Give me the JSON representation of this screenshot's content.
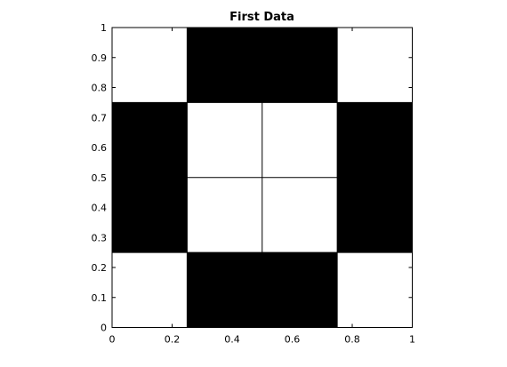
{
  "chart_data": {
    "type": "heatmap",
    "title": "First Data",
    "xlabel": "",
    "ylabel": "",
    "xlim": [
      0,
      1
    ],
    "ylim": [
      0,
      1
    ],
    "xticks": [
      0,
      0.2,
      0.4,
      0.6,
      0.8,
      1
    ],
    "xtick_labels": [
      "0",
      "0.2",
      "0.4",
      "0.6",
      "0.8",
      "1"
    ],
    "yticks": [
      0,
      0.1,
      0.2,
      0.3,
      0.4,
      0.5,
      0.6,
      0.7,
      0.8,
      0.9,
      1
    ],
    "ytick_labels": [
      "0",
      "0.1",
      "0.2",
      "0.3",
      "0.4",
      "0.5",
      "0.6",
      "0.7",
      "0.8",
      "0.9",
      "1"
    ],
    "grid": false,
    "legend": "none",
    "cell_colors": {
      "0": "#ffffff",
      "1": "#000000"
    },
    "grid_edges": [
      0,
      0.25,
      0.5,
      0.75,
      1
    ],
    "cells": [
      {
        "x0": 0,
        "x1": 0.25,
        "y0": 0,
        "y1": 0.25,
        "value": 0
      },
      {
        "x0": 0.25,
        "x1": 0.75,
        "y0": 0,
        "y1": 0.25,
        "value": 1
      },
      {
        "x0": 0.75,
        "x1": 1,
        "y0": 0,
        "y1": 0.25,
        "value": 0
      },
      {
        "x0": 0,
        "x1": 0.25,
        "y0": 0.25,
        "y1": 0.75,
        "value": 1
      },
      {
        "x0": 0.25,
        "x1": 0.5,
        "y0": 0.25,
        "y1": 0.5,
        "value": 0
      },
      {
        "x0": 0.5,
        "x1": 0.75,
        "y0": 0.25,
        "y1": 0.5,
        "value": 0
      },
      {
        "x0": 0.25,
        "x1": 0.5,
        "y0": 0.5,
        "y1": 0.75,
        "value": 0
      },
      {
        "x0": 0.5,
        "x1": 0.75,
        "y0": 0.5,
        "y1": 0.75,
        "value": 0
      },
      {
        "x0": 0.75,
        "x1": 1,
        "y0": 0.25,
        "y1": 0.75,
        "value": 1
      },
      {
        "x0": 0,
        "x1": 0.25,
        "y0": 0.75,
        "y1": 1,
        "value": 0
      },
      {
        "x0": 0.25,
        "x1": 0.75,
        "y0": 0.75,
        "y1": 1,
        "value": 1
      },
      {
        "x0": 0.75,
        "x1": 1,
        "y0": 0.75,
        "y1": 1,
        "value": 0
      }
    ]
  }
}
